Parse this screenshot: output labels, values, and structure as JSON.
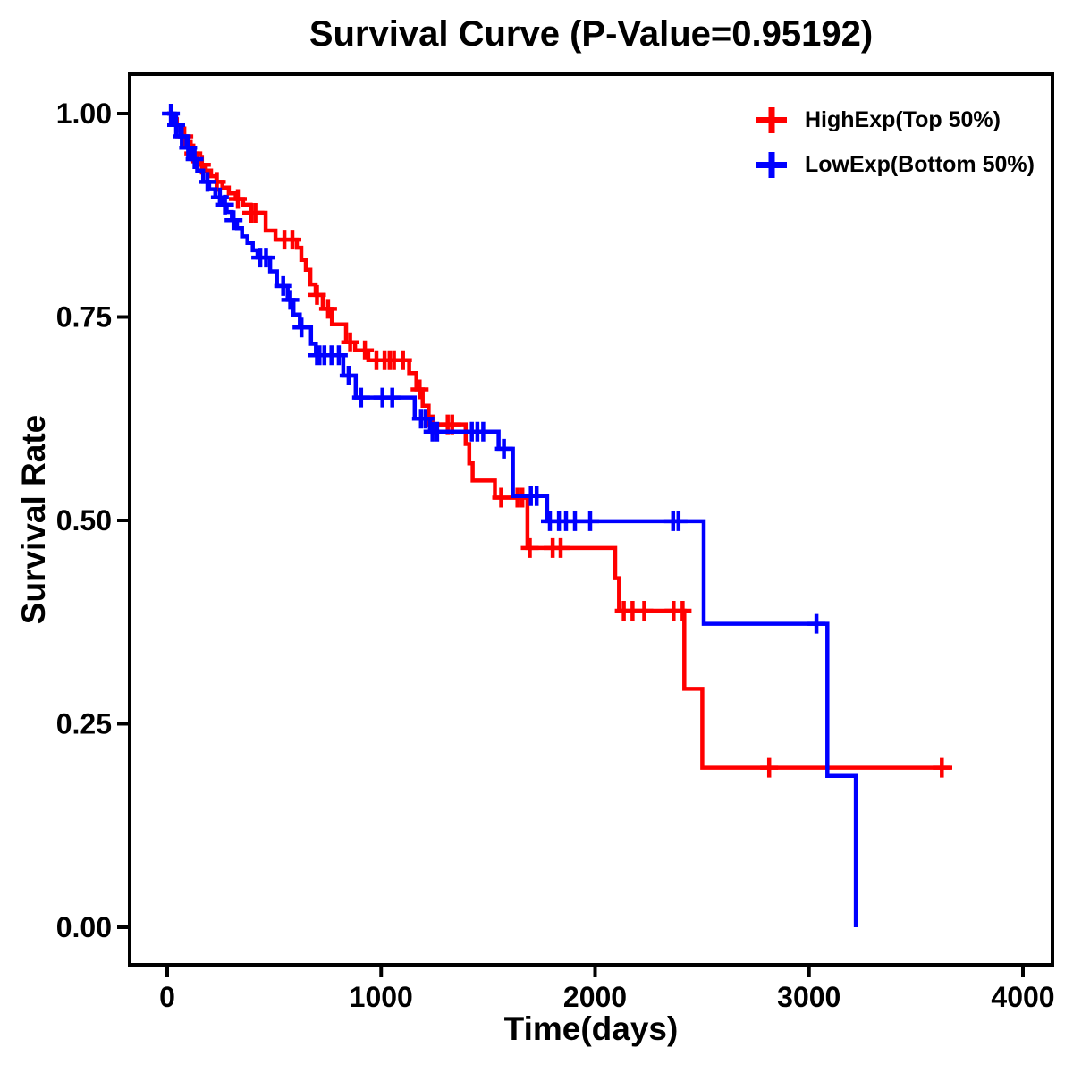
{
  "page": {
    "background": "#ffffff"
  },
  "chart_data": {
    "type": "line",
    "subtype": "kaplan-meier-step-survival",
    "title": "Survival Curve (P-Value=0.95192)",
    "p_value": "0.95192",
    "xlabel": "Time(days)",
    "ylabel": "Survival Rate",
    "xlim": [
      0,
      4000
    ],
    "ylim": [
      0,
      1
    ],
    "grid": false,
    "legend_position": "top-right-inside",
    "axis_color": "#000000",
    "x_ticks": [
      {
        "value": 0,
        "label": "0"
      },
      {
        "value": 1000,
        "label": "1000"
      },
      {
        "value": 2000,
        "label": "2000"
      },
      {
        "value": 3000,
        "label": "3000"
      },
      {
        "value": 4000,
        "label": "4000"
      }
    ],
    "y_ticks": [
      {
        "value": 0.0,
        "label": "0.00"
      },
      {
        "value": 0.25,
        "label": "0.25"
      },
      {
        "value": 0.5,
        "label": "0.50"
      },
      {
        "value": 0.75,
        "label": "0.75"
      },
      {
        "value": 1.0,
        "label": "1.00"
      }
    ],
    "series": [
      {
        "id": "highexp",
        "name": "HighExp(Top 50%)",
        "color": "#FF0000",
        "marker": "plus",
        "steps": [
          [
            0,
            1.0
          ],
          [
            25,
            0.993
          ],
          [
            45,
            0.986
          ],
          [
            60,
            0.979
          ],
          [
            78,
            0.972
          ],
          [
            95,
            0.965
          ],
          [
            110,
            0.958
          ],
          [
            125,
            0.951
          ],
          [
            142,
            0.944
          ],
          [
            160,
            0.937
          ],
          [
            180,
            0.93
          ],
          [
            205,
            0.923
          ],
          [
            230,
            0.916
          ],
          [
            258,
            0.909
          ],
          [
            288,
            0.902
          ],
          [
            320,
            0.895
          ],
          [
            355,
            0.888
          ],
          [
            390,
            0.878
          ],
          [
            460,
            0.856
          ],
          [
            506,
            0.845
          ],
          [
            606,
            0.835
          ],
          [
            627,
            0.82
          ],
          [
            648,
            0.808
          ],
          [
            669,
            0.79
          ],
          [
            694,
            0.777
          ],
          [
            727,
            0.76
          ],
          [
            770,
            0.741
          ],
          [
            836,
            0.719
          ],
          [
            878,
            0.709
          ],
          [
            940,
            0.697
          ],
          [
            1131,
            0.681
          ],
          [
            1165,
            0.661
          ],
          [
            1194,
            0.641
          ],
          [
            1222,
            0.618
          ],
          [
            1395,
            0.594
          ],
          [
            1412,
            0.57
          ],
          [
            1428,
            0.549
          ],
          [
            1532,
            0.528
          ],
          [
            1684,
            0.466
          ],
          [
            2094,
            0.429
          ],
          [
            2112,
            0.389
          ],
          [
            2417,
            0.293
          ],
          [
            2501,
            0.196
          ],
          [
            3670,
            0.196
          ]
        ],
        "censor_marks": [
          [
            80,
            0.972
          ],
          [
            122,
            0.951
          ],
          [
            162,
            0.937
          ],
          [
            232,
            0.916
          ],
          [
            330,
            0.895
          ],
          [
            393,
            0.878
          ],
          [
            412,
            0.878
          ],
          [
            548,
            0.845
          ],
          [
            585,
            0.845
          ],
          [
            700,
            0.777
          ],
          [
            752,
            0.76
          ],
          [
            855,
            0.719
          ],
          [
            924,
            0.709
          ],
          [
            978,
            0.697
          ],
          [
            1016,
            0.697
          ],
          [
            1040,
            0.697
          ],
          [
            1060,
            0.697
          ],
          [
            1102,
            0.697
          ],
          [
            1180,
            0.661
          ],
          [
            1240,
            0.618
          ],
          [
            1311,
            0.618
          ],
          [
            1332,
            0.618
          ],
          [
            1561,
            0.528
          ],
          [
            1637,
            0.528
          ],
          [
            1660,
            0.528
          ],
          [
            1695,
            0.466
          ],
          [
            1802,
            0.466
          ],
          [
            1839,
            0.466
          ],
          [
            2134,
            0.389
          ],
          [
            2175,
            0.389
          ],
          [
            2230,
            0.389
          ],
          [
            2367,
            0.389
          ],
          [
            2409,
            0.389
          ],
          [
            2814,
            0.196
          ],
          [
            3621,
            0.196
          ]
        ]
      },
      {
        "id": "lowexp",
        "name": "LowExp(Bottom 50%)",
        "color": "#0000FF",
        "marker": "plus",
        "steps": [
          [
            0,
            1.0
          ],
          [
            35,
            0.986
          ],
          [
            60,
            0.972
          ],
          [
            90,
            0.958
          ],
          [
            115,
            0.944
          ],
          [
            140,
            0.93
          ],
          [
            168,
            0.916
          ],
          [
            196,
            0.907
          ],
          [
            225,
            0.897
          ],
          [
            252,
            0.888
          ],
          [
            278,
            0.879
          ],
          [
            302,
            0.869
          ],
          [
            326,
            0.859
          ],
          [
            350,
            0.849
          ],
          [
            375,
            0.841
          ],
          [
            400,
            0.832
          ],
          [
            422,
            0.823
          ],
          [
            481,
            0.806
          ],
          [
            513,
            0.788
          ],
          [
            563,
            0.771
          ],
          [
            590,
            0.753
          ],
          [
            620,
            0.737
          ],
          [
            672,
            0.717
          ],
          [
            695,
            0.703
          ],
          [
            823,
            0.678
          ],
          [
            881,
            0.651
          ],
          [
            1157,
            0.625
          ],
          [
            1228,
            0.609
          ],
          [
            1549,
            0.588
          ],
          [
            1616,
            0.53
          ],
          [
            1776,
            0.499
          ],
          [
            2508,
            0.373
          ],
          [
            3086,
            0.186
          ],
          [
            3219,
            0.0
          ]
        ],
        "censor_marks": [
          [
            17,
            1.0
          ],
          [
            42,
            0.986
          ],
          [
            68,
            0.972
          ],
          [
            98,
            0.958
          ],
          [
            128,
            0.944
          ],
          [
            188,
            0.916
          ],
          [
            246,
            0.897
          ],
          [
            270,
            0.888
          ],
          [
            310,
            0.869
          ],
          [
            435,
            0.823
          ],
          [
            462,
            0.823
          ],
          [
            542,
            0.788
          ],
          [
            575,
            0.771
          ],
          [
            628,
            0.737
          ],
          [
            700,
            0.703
          ],
          [
            712,
            0.703
          ],
          [
            735,
            0.703
          ],
          [
            768,
            0.703
          ],
          [
            802,
            0.703
          ],
          [
            848,
            0.678
          ],
          [
            906,
            0.651
          ],
          [
            1006,
            0.651
          ],
          [
            1052,
            0.651
          ],
          [
            1186,
            0.625
          ],
          [
            1207,
            0.625
          ],
          [
            1240,
            0.609
          ],
          [
            1262,
            0.609
          ],
          [
            1424,
            0.609
          ],
          [
            1450,
            0.609
          ],
          [
            1477,
            0.609
          ],
          [
            1574,
            0.588
          ],
          [
            1700,
            0.53
          ],
          [
            1727,
            0.53
          ],
          [
            1789,
            0.499
          ],
          [
            1831,
            0.499
          ],
          [
            1864,
            0.499
          ],
          [
            1906,
            0.499
          ],
          [
            1977,
            0.499
          ],
          [
            2365,
            0.499
          ],
          [
            2390,
            0.499
          ],
          [
            3035,
            0.373
          ]
        ]
      }
    ]
  },
  "legend": {
    "items": [
      {
        "label": "HighExp(Top 50%)",
        "color": "#FF0000",
        "marker": "plus"
      },
      {
        "label": "LowExp(Bottom 50%)",
        "color": "#0000FF",
        "marker": "plus"
      }
    ]
  }
}
